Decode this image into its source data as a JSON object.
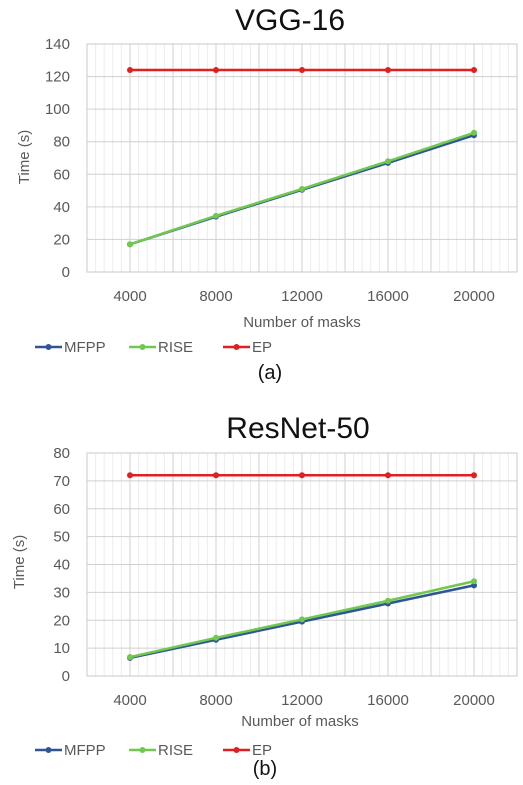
{
  "chart_data": [
    {
      "type": "line",
      "title": "VGG-16",
      "xlabel": "Number of masks",
      "ylabel": "Time (s)",
      "categories": [
        4000,
        8000,
        12000,
        16000,
        20000
      ],
      "xticks": [
        "4000",
        "8000",
        "12000",
        "16000",
        "20000"
      ],
      "ylim": [
        0,
        140
      ],
      "yticks": [
        "0",
        "20",
        "40",
        "60",
        "80",
        "100",
        "120",
        "140"
      ],
      "yticks_values": [
        0,
        20,
        40,
        60,
        80,
        100,
        120,
        140
      ],
      "grid": true,
      "legend": "bottom-left",
      "caption": "(a)",
      "series": [
        {
          "name": "MFPP",
          "color": "#2f5597",
          "values": [
            17,
            34,
            50.5,
            67,
            84
          ]
        },
        {
          "name": "RISE",
          "color": "#70c94c",
          "values": [
            17,
            34.5,
            51,
            68,
            85.5
          ]
        },
        {
          "name": "EP",
          "color": "#e02020",
          "values": [
            124,
            124,
            124,
            124,
            124
          ]
        }
      ]
    },
    {
      "type": "line",
      "title": "ResNet-50",
      "xlabel": "Number of masks",
      "ylabel": "Time (s)",
      "categories": [
        4000,
        8000,
        12000,
        16000,
        20000
      ],
      "xticks": [
        "4000",
        "8000",
        "12000",
        "16000",
        "20000"
      ],
      "ylim": [
        0,
        80
      ],
      "yticks": [
        "0",
        "10",
        "20",
        "30",
        "40",
        "50",
        "60",
        "70",
        "80"
      ],
      "yticks_values": [
        0,
        10,
        20,
        30,
        40,
        50,
        60,
        70,
        80
      ],
      "grid": true,
      "legend": "bottom-left",
      "caption": "(b)",
      "series": [
        {
          "name": "MFPP",
          "color": "#2f5597",
          "values": [
            6.5,
            13,
            19.5,
            26,
            32.5
          ]
        },
        {
          "name": "RISE",
          "color": "#70c94c",
          "values": [
            6.8,
            13.7,
            20.3,
            27,
            34
          ]
        },
        {
          "name": "EP",
          "color": "#e02020",
          "values": [
            72,
            72,
            72,
            72,
            72
          ]
        }
      ]
    }
  ]
}
